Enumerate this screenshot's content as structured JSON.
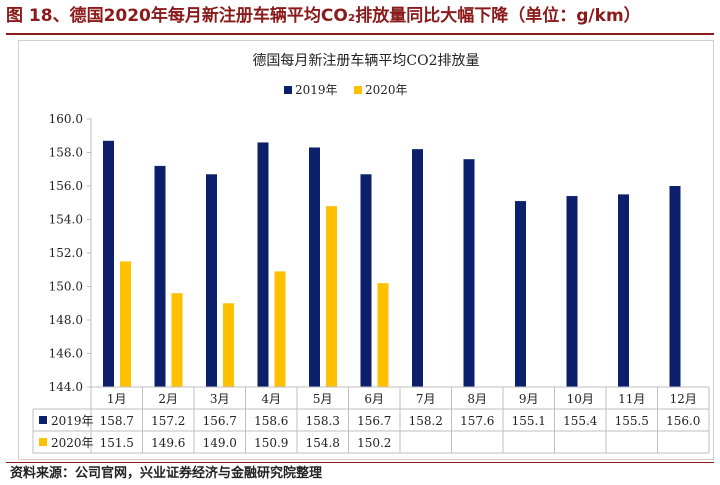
{
  "figure": {
    "title": "图 18、德国2020年每月新注册车辆平均CO₂排放量同比大幅下降（单位：g/km）",
    "source": "资料来源：公司官网，兴业证券经济与金融研究院整理"
  },
  "chart_data": {
    "type": "bar",
    "title": "德国每月新注册车辆平均CO2排放量",
    "xlabel": "",
    "ylabel": "",
    "ylim": [
      144.0,
      160.0
    ],
    "yticks": [
      "144.0",
      "146.0",
      "148.0",
      "150.0",
      "152.0",
      "154.0",
      "156.0",
      "158.0",
      "160.0"
    ],
    "categories": [
      "1月",
      "2月",
      "3月",
      "4月",
      "5月",
      "6月",
      "7月",
      "8月",
      "9月",
      "10月",
      "11月",
      "12月"
    ],
    "series": [
      {
        "name": "2019年",
        "color": "#0b1f6b",
        "values": [
          158.7,
          157.2,
          156.7,
          158.6,
          158.3,
          156.7,
          158.2,
          157.6,
          155.1,
          155.4,
          155.5,
          156.0
        ],
        "labels": [
          "158.7",
          "157.2",
          "156.7",
          "158.6",
          "158.3",
          "156.7",
          "158.2",
          "157.6",
          "155.1",
          "155.4",
          "155.5",
          "156.0"
        ]
      },
      {
        "name": "2020年",
        "color": "#ffc000",
        "values": [
          151.5,
          149.6,
          149.0,
          150.9,
          154.8,
          150.2,
          null,
          null,
          null,
          null,
          null,
          null
        ],
        "labels": [
          "151.5",
          "149.6",
          "149.0",
          "150.9",
          "154.8",
          "150.2",
          "",
          "",
          "",
          "",
          "",
          ""
        ]
      }
    ],
    "legend_position": "top-center",
    "data_table": true,
    "grid": false
  }
}
